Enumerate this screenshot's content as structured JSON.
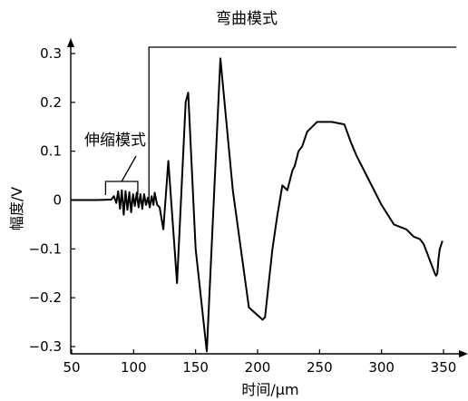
{
  "chart_data": {
    "type": "line",
    "xlabel": "时间/μm",
    "ylabel": "幅度/V",
    "xlim": [
      50,
      360
    ],
    "ylim": [
      -0.31,
      0.31
    ],
    "x_ticks": [
      50,
      100,
      150,
      200,
      250,
      300,
      350
    ],
    "y_ticks": [
      0.3,
      0.2,
      0.1,
      0,
      -0.1,
      -0.2,
      -0.3
    ],
    "x_tick_labels": [
      "50",
      "100",
      "150",
      "200",
      "250",
      "300",
      "350"
    ],
    "y_tick_labels": [
      "0.3",
      "0.2",
      "0.1",
      "0",
      "−0.1",
      "−0.2",
      "−0.3"
    ],
    "grid": false,
    "series": [
      {
        "x": [
          50,
          70,
          82,
          84,
          86,
          87.5,
          89,
          90.5,
          92,
          93.5,
          95,
          96.5,
          98,
          99.5,
          101,
          102.5,
          104,
          105.5,
          107,
          108.5,
          110,
          111.5,
          113,
          114.5,
          116,
          117,
          119,
          121,
          124,
          128,
          135,
          142,
          144,
          150,
          159,
          170,
          180,
          193,
          204,
          206,
          212,
          216,
          220,
          224,
          228,
          230,
          233,
          236,
          240,
          244,
          248,
          252,
          260,
          270,
          275,
          280,
          290,
          300,
          310,
          320,
          326,
          331,
          334,
          337,
          340,
          343,
          344,
          345,
          346,
          347,
          349
        ],
        "y": [
          0,
          0,
          0.001,
          0.008,
          -0.006,
          0.018,
          -0.018,
          0.02,
          -0.03,
          0.018,
          -0.02,
          0.016,
          -0.025,
          0.012,
          -0.012,
          0.015,
          -0.015,
          0.012,
          -0.018,
          0.012,
          -0.01,
          0.005,
          -0.015,
          0.008,
          -0.01,
          0.015,
          -0.01,
          -0.015,
          -0.06,
          0.08,
          -0.17,
          0.2,
          0.22,
          -0.1,
          -0.31,
          0.29,
          0.02,
          -0.22,
          -0.245,
          -0.24,
          -0.1,
          -0.03,
          0.03,
          0.02,
          0.06,
          0.07,
          0.1,
          0.11,
          0.14,
          0.15,
          0.16,
          0.16,
          0.16,
          0.155,
          0.12,
          0.09,
          0.04,
          -0.01,
          -0.05,
          -0.06,
          -0.075,
          -0.08,
          -0.09,
          -0.11,
          -0.13,
          -0.15,
          -0.155,
          -0.15,
          -0.12,
          -0.1,
          -0.085
        ]
      }
    ],
    "annotations": [
      {
        "text": "弯曲模式",
        "x_start": 112,
        "x_end": 360
      },
      {
        "text": "伸缩模式",
        "x_start": 77,
        "x_end": 103
      }
    ]
  }
}
